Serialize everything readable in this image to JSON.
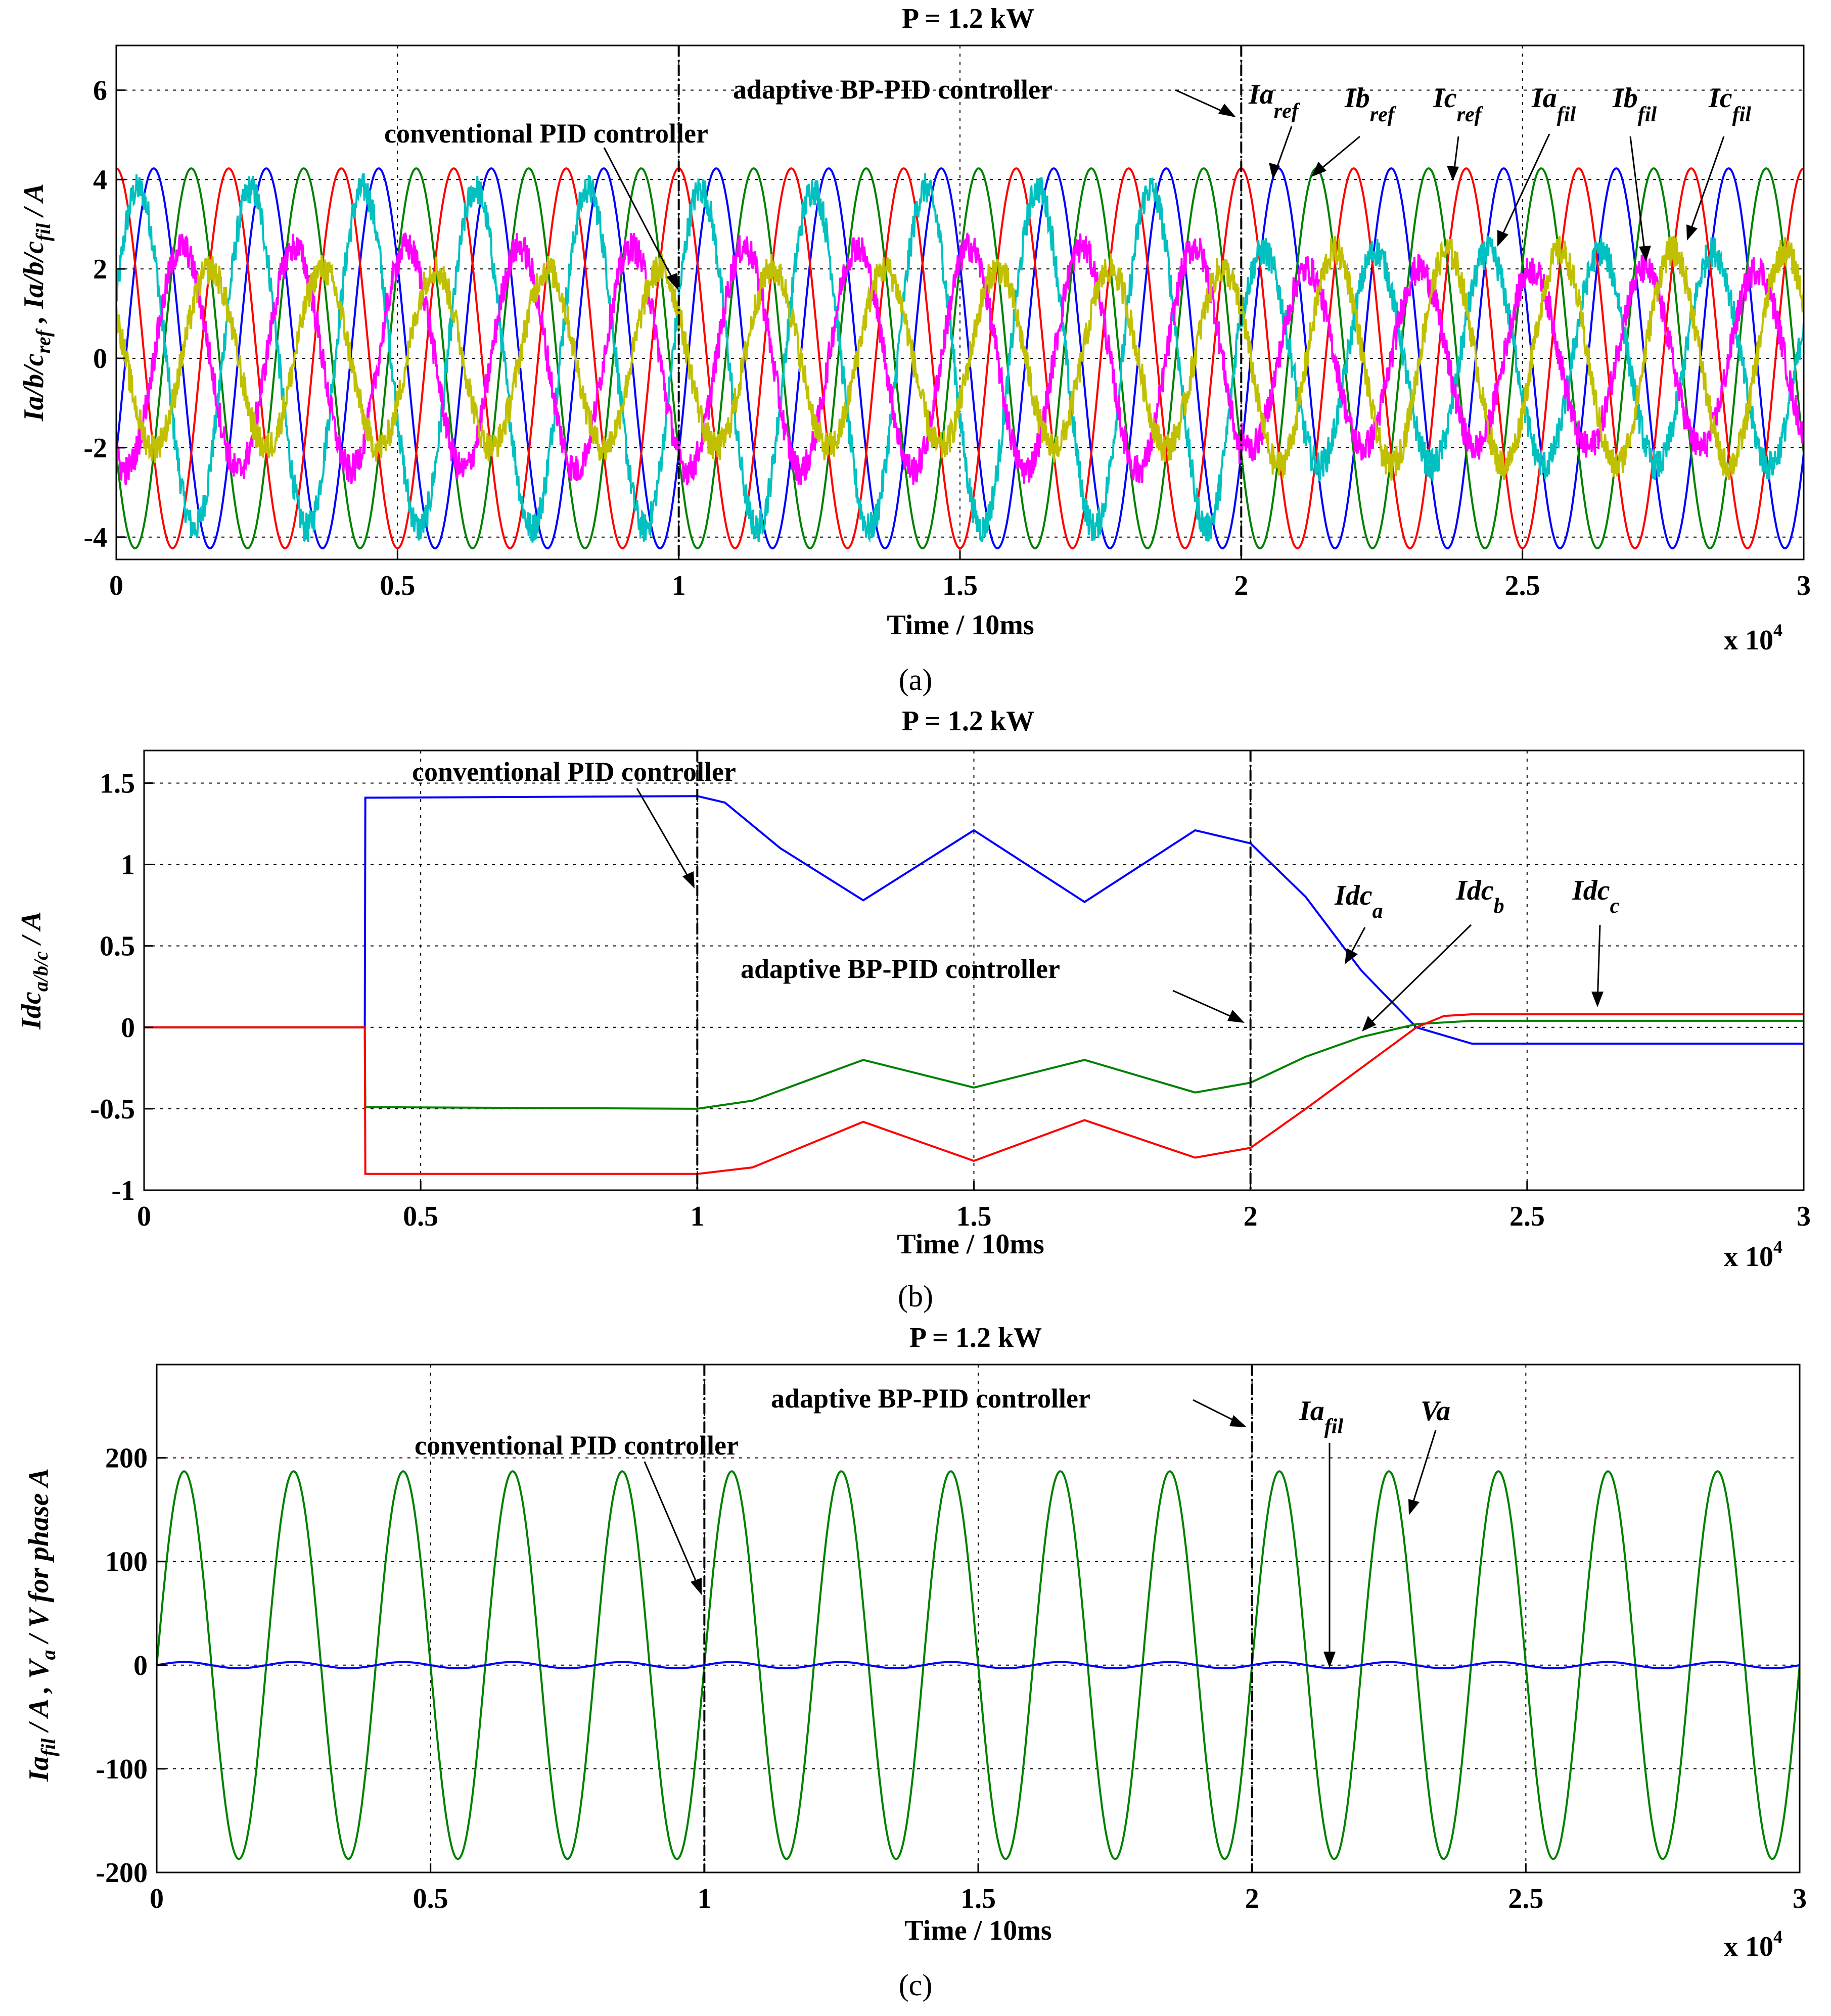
{
  "chart_data": [
    {
      "id": "a",
      "type": "line",
      "title": "P = 1.2 kW",
      "caption": "(a)",
      "xlabel": "Time / 10ms",
      "x_multiplier": "x 10",
      "x_multiplier_exp": "4",
      "ylabel_parts": [
        "Ia/b/c",
        "ref",
        " , Ia/b/c",
        "fil",
        " / A"
      ],
      "xlim": [
        0,
        3
      ],
      "ylim": [
        -4.5,
        7
      ],
      "xticks": [
        "0",
        "0.5",
        "1",
        "1.5",
        "2",
        "2.5",
        "3"
      ],
      "yticks": [
        -4,
        -2,
        0,
        2,
        4,
        6
      ],
      "ytick_labels": [
        "-4",
        "-2",
        "0",
        "2",
        "4",
        "6"
      ],
      "grid": true,
      "vertical_markers": [
        1,
        2
      ],
      "annotations": {
        "adaptive": "adaptive BP-PID controller",
        "conventional": "conventional PID controller"
      },
      "series": [
        {
          "name": "Ia_ref",
          "label": "Ia",
          "sub": "ref",
          "color": "#0000ff",
          "amplitude": 4.25,
          "cycles_per_unit": 5,
          "phase_deg": -30,
          "noise": 0
        },
        {
          "name": "Ib_ref",
          "label": "Ib",
          "sub": "ref",
          "color": "#008000",
          "amplitude": 4.25,
          "cycles_per_unit": 5,
          "phase_deg": -150,
          "noise": 0
        },
        {
          "name": "Ic_ref",
          "label": "Ic",
          "sub": "ref",
          "color": "#ff0000",
          "amplitude": 4.25,
          "cycles_per_unit": 5,
          "phase_deg": 90,
          "noise": 0
        },
        {
          "name": "Ia_fil",
          "label": "Ia",
          "sub": "fil",
          "color": "#00c0c0",
          "amplitude_conv": 3.8,
          "amplitude_adapt": 2.4,
          "cycles_per_unit": 5,
          "phase_deg": 20,
          "noise": 0.35
        },
        {
          "name": "Ib_fil",
          "label": "Ib",
          "sub": "fil",
          "color": "#ff00ff",
          "amplitude_conv": 2.5,
          "amplitude_adapt": 2.0,
          "cycles_per_unit": 5,
          "phase_deg": -120,
          "noise": 0.35
        },
        {
          "name": "Ic_fil",
          "label": "Ic",
          "sub": "fil",
          "color": "#c0c000",
          "amplitude_conv": 2.0,
          "amplitude_adapt": 2.4,
          "cycles_per_unit": 5,
          "phase_deg": 150,
          "noise": 0.35
        }
      ]
    },
    {
      "id": "b",
      "type": "line",
      "title": "P = 1.2 kW",
      "caption": "(b)",
      "xlabel": "Time / 10ms",
      "x_multiplier": "x 10",
      "x_multiplier_exp": "4",
      "ylabel_parts": [
        "Idc",
        "a/b/c",
        " / A"
      ],
      "xlim": [
        0,
        3
      ],
      "ylim": [
        -1,
        1.7
      ],
      "xticks": [
        "0",
        "0.5",
        "1",
        "1.5",
        "2",
        "2.5",
        "3"
      ],
      "yticks": [
        -1,
        -0.5,
        0,
        0.5,
        1,
        1.5
      ],
      "ytick_labels": [
        "-1",
        "-0.5",
        "0",
        "0.5",
        "1",
        "1.5"
      ],
      "grid": true,
      "vertical_markers": [
        1,
        2
      ],
      "annotations": {
        "adaptive": "adaptive BP-PID controller",
        "conventional": "conventional PID controller"
      },
      "series": [
        {
          "name": "Idc_a",
          "label": "Idc",
          "sub": "a",
          "color": "#0000ff",
          "points": [
            [
              0,
              0
            ],
            [
              0.399,
              0
            ],
            [
              0.4,
              1.41
            ],
            [
              1.0,
              1.42
            ],
            [
              1.05,
              1.38
            ],
            [
              1.15,
              1.1
            ],
            [
              1.3,
              0.78
            ],
            [
              1.5,
              1.21
            ],
            [
              1.7,
              0.77
            ],
            [
              1.9,
              1.21
            ],
            [
              2.0,
              1.13
            ],
            [
              2.1,
              0.8
            ],
            [
              2.2,
              0.35
            ],
            [
              2.3,
              0.0
            ],
            [
              2.4,
              -0.1
            ],
            [
              3,
              -0.1
            ]
          ]
        },
        {
          "name": "Idc_b",
          "label": "Idc",
          "sub": "b",
          "color": "#008000",
          "points": [
            [
              0,
              0
            ],
            [
              0.399,
              0
            ],
            [
              0.4,
              -0.49
            ],
            [
              1.0,
              -0.5
            ],
            [
              1.1,
              -0.45
            ],
            [
              1.3,
              -0.2
            ],
            [
              1.5,
              -0.37
            ],
            [
              1.7,
              -0.2
            ],
            [
              1.9,
              -0.4
            ],
            [
              2.0,
              -0.34
            ],
            [
              2.1,
              -0.18
            ],
            [
              2.2,
              -0.06
            ],
            [
              2.3,
              0.02
            ],
            [
              2.4,
              0.04
            ],
            [
              3,
              0.04
            ]
          ]
        },
        {
          "name": "Idc_c",
          "label": "Idc",
          "sub": "c",
          "color": "#ff0000",
          "points": [
            [
              0,
              0
            ],
            [
              0.399,
              0
            ],
            [
              0.4,
              -0.9
            ],
            [
              1.0,
              -0.9
            ],
            [
              1.1,
              -0.86
            ],
            [
              1.3,
              -0.58
            ],
            [
              1.5,
              -0.82
            ],
            [
              1.7,
              -0.57
            ],
            [
              1.9,
              -0.8
            ],
            [
              2.0,
              -0.74
            ],
            [
              2.1,
              -0.5
            ],
            [
              2.2,
              -0.25
            ],
            [
              2.3,
              0.0
            ],
            [
              2.35,
              0.07
            ],
            [
              2.4,
              0.08
            ],
            [
              3,
              0.08
            ]
          ]
        }
      ]
    },
    {
      "id": "c",
      "type": "line",
      "title": "P = 1.2 kW",
      "caption": "(c)",
      "xlabel": "Time / 10ms",
      "x_multiplier": "x 10",
      "x_multiplier_exp": "4",
      "ylabel_parts": [
        "Ia",
        "fil",
        " / A , V",
        "a",
        " / V for phase A"
      ],
      "xlim": [
        0,
        3
      ],
      "ylim": [
        -200,
        290
      ],
      "xticks": [
        "0",
        "0.5",
        "1",
        "1.5",
        "2",
        "2.5",
        "3"
      ],
      "yticks": [
        -200,
        -100,
        0,
        100,
        200
      ],
      "ytick_labels": [
        "-200",
        "-100",
        "0",
        "100",
        "200"
      ],
      "grid": true,
      "vertical_markers": [
        1,
        2
      ],
      "annotations": {
        "adaptive": "adaptive BP-PID controller",
        "conventional": "conventional PID controller"
      },
      "series": [
        {
          "name": "Va",
          "label": "Va",
          "sub": "",
          "color": "#008000",
          "amplitude": 187,
          "cycles_per_unit": 5,
          "phase_deg": 0
        },
        {
          "name": "Ia_fil",
          "label": "Ia",
          "sub": "fil",
          "color": "#0000ff",
          "amplitude": 3,
          "cycles_per_unit": 5,
          "phase_deg": 0
        }
      ]
    }
  ]
}
